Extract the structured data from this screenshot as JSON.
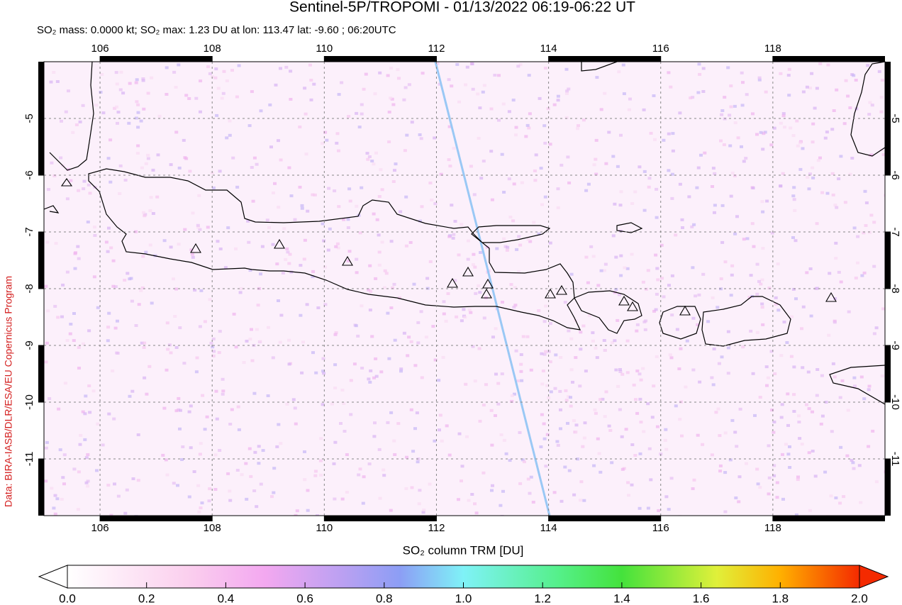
{
  "header": {
    "title": "Sentinel-5P/TROPOMI - 01/13/2022 06:19-06:22 UT",
    "subtitle": "SO₂ mass: 0.0000 kt; SO₂ max: 1.23 DU at lon: 113.47 lat: -9.60 ; 06:20UTC"
  },
  "map": {
    "xlim": [
      105,
      120
    ],
    "ylim": [
      -12,
      -4
    ],
    "xticks": [
      106,
      108,
      110,
      112,
      114,
      116,
      118
    ],
    "yticks": [
      -5,
      -6,
      -7,
      -8,
      -9,
      -10,
      -11
    ],
    "grid": true
  },
  "credit": "Data: BIRA-IASB/DLR/ESA/EU Copernicus Program",
  "colorbar": {
    "label": "SO₂ column TRM [DU]",
    "lim": [
      0,
      2
    ],
    "ticks": [
      {
        "value": 0,
        "label": "0.0"
      },
      0.2,
      0.4,
      0.6,
      0.8,
      {
        "value": 1,
        "label": "1.0"
      },
      1.2,
      1.4,
      1.6,
      1.8,
      {
        "value": 2,
        "label": "2.0"
      }
    ]
  }
}
